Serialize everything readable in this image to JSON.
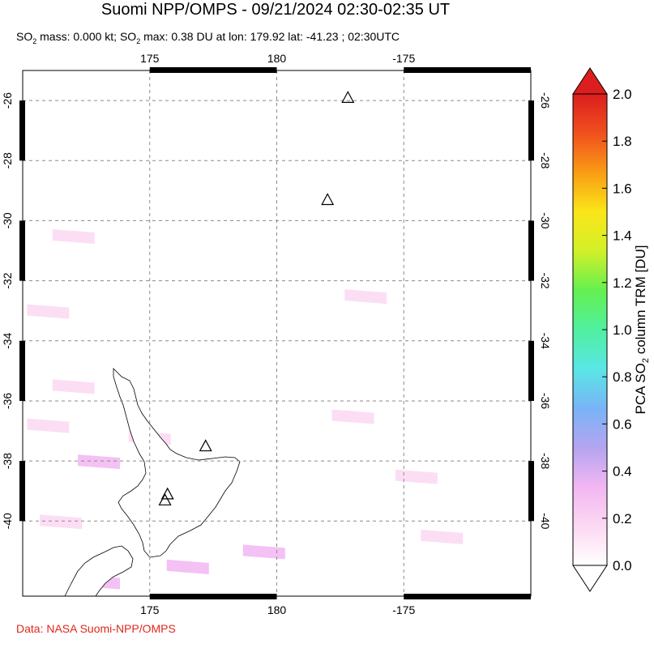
{
  "title": "Suomi NPP/OMPS - 09/21/2024 02:30-02:35 UT",
  "subtitle": {
    "mass_label": "SO",
    "mass_rest": " mass: 0.000 kt; SO",
    "max_rest": " max: 0.38 DU at lon: 179.92 lat: -41.23 ; 02:30UTC",
    "sub2": "2"
  },
  "credit": "Data: NASA Suomi-NPP/OMPS",
  "colorbar": {
    "label_pre": "PCA SO",
    "label_sub": "2",
    "label_post": " column TRM [DU]",
    "ticks": [
      "0.0",
      "0.2",
      "0.4",
      "0.6",
      "0.8",
      "1.0",
      "1.2",
      "1.4",
      "1.6",
      "1.8",
      "2.0"
    ],
    "colors": [
      "#ffffff",
      "#fcd8f2",
      "#f2b6f2",
      "#b4a4f0",
      "#78b4f6",
      "#5ae6e6",
      "#50f0a0",
      "#64f050",
      "#d2f028",
      "#fae619",
      "#f99c14",
      "#f0501e",
      "#dc1e1e"
    ]
  },
  "chart_data": {
    "type": "heatmap",
    "title": "Suomi NPP/OMPS - 09/21/2024 02:30-02:35 UT",
    "x_axis_ticks": [
      "175",
      "180",
      "-175"
    ],
    "y_axis_ticks": [
      "-26",
      "-28",
      "-30",
      "-32",
      "-34",
      "-36",
      "-38",
      "-40"
    ],
    "lon_range": [
      170,
      190
    ],
    "lat_range": [
      -42.5,
      -25
    ],
    "grid": true,
    "volcanoes": [
      {
        "lon": 182.8,
        "lat": -25.9
      },
      {
        "lon": 182.0,
        "lat": -29.3
      },
      {
        "lon": 177.2,
        "lat": -37.5
      },
      {
        "lon": 175.7,
        "lat": -39.1
      },
      {
        "lon": 175.6,
        "lat": -39.3
      }
    ],
    "pixels": [
      {
        "lon": 172.5,
        "lat": -26.5,
        "v": 0.08
      },
      {
        "lon": 174.0,
        "lat": -27.0,
        "v": 0.06
      },
      {
        "lon": 171.0,
        "lat": -28.0,
        "v": 0.07
      },
      {
        "lon": 176.0,
        "lat": -28.5,
        "v": 0.05
      },
      {
        "lon": 172.0,
        "lat": -30.5,
        "v": 0.1
      },
      {
        "lon": 174.5,
        "lat": -31.0,
        "v": 0.06
      },
      {
        "lon": 178.5,
        "lat": -31.5,
        "v": 0.05
      },
      {
        "lon": 183.5,
        "lat": -32.5,
        "v": 0.12
      },
      {
        "lon": 171.0,
        "lat": -33.0,
        "v": 0.09
      },
      {
        "lon": 177.0,
        "lat": -33.5,
        "v": 0.08
      },
      {
        "lon": 181.5,
        "lat": -34.5,
        "v": 0.06
      },
      {
        "lon": 172.0,
        "lat": -35.5,
        "v": 0.12
      },
      {
        "lon": 179.0,
        "lat": -36.0,
        "v": 0.07
      },
      {
        "lon": 183.0,
        "lat": -36.5,
        "v": 0.14
      },
      {
        "lon": 171.0,
        "lat": -36.8,
        "v": 0.22
      },
      {
        "lon": 173.0,
        "lat": -38.0,
        "v": 0.25
      },
      {
        "lon": 180.5,
        "lat": -38.0,
        "v": 0.08
      },
      {
        "lon": 185.5,
        "lat": -38.5,
        "v": 0.12
      },
      {
        "lon": 171.5,
        "lat": -40.0,
        "v": 0.1
      },
      {
        "lon": 177.0,
        "lat": -40.0,
        "v": 0.08
      },
      {
        "lon": 179.5,
        "lat": -41.0,
        "v": 0.38
      },
      {
        "lon": 176.5,
        "lat": -41.5,
        "v": 0.3
      },
      {
        "lon": 173.0,
        "lat": -42.0,
        "v": 0.28
      },
      {
        "lon": 182.0,
        "lat": -41.5,
        "v": 0.06
      },
      {
        "lon": 186.5,
        "lat": -40.5,
        "v": 0.1
      },
      {
        "lon": 175.0,
        "lat": -37.2,
        "v": 0.18
      }
    ]
  }
}
